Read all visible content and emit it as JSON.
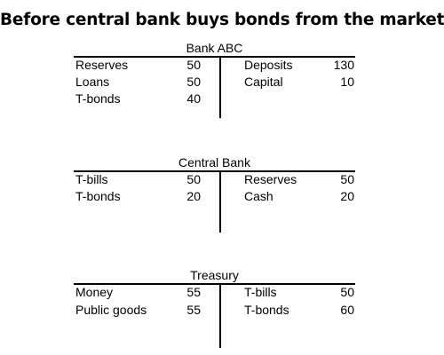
{
  "title": "Before central bank buys bonds from the market",
  "accounts": [
    {
      "name": "Bank ABC",
      "assets": [
        {
          "label": "Reserves",
          "value": "50"
        },
        {
          "label": "Loans",
          "value": "50"
        },
        {
          "label": "T-bonds",
          "value": "40"
        }
      ],
      "liabilities": [
        {
          "label": "Deposits",
          "value": "130"
        },
        {
          "label": "Capital",
          "value": "10"
        }
      ]
    },
    {
      "name": "Central Bank",
      "assets": [
        {
          "label": "T-bills",
          "value": "50"
        },
        {
          "label": "T-bonds",
          "value": "20"
        }
      ],
      "liabilities": [
        {
          "label": "Reserves",
          "value": "50"
        },
        {
          "label": "Cash",
          "value": "20"
        }
      ]
    },
    {
      "name": "Treasury",
      "assets": [
        {
          "label": "Money",
          "value": "55"
        },
        {
          "label": "Public goods",
          "value": "55"
        }
      ],
      "liabilities": [
        {
          "label": "T-bills",
          "value": "50"
        },
        {
          "label": "T-bonds",
          "value": "60"
        }
      ]
    }
  ]
}
